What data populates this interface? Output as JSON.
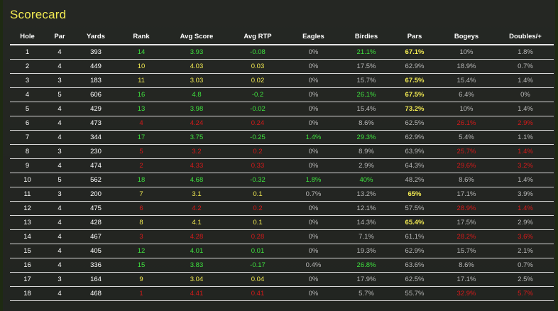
{
  "title": "Scorecard",
  "columns": [
    "Hole",
    "Par",
    "Yards",
    "Rank",
    "Avg Score",
    "Avg RTP",
    "Eagles",
    "Birdies",
    "Pars",
    "Bogeys",
    "Doubles/+"
  ],
  "colors": {
    "green": "#3ee03e",
    "yellow": "#f2ea52",
    "red": "#d41a1a",
    "grey": "#b8b8b8"
  },
  "rows": [
    {
      "hole": "1",
      "par": "4",
      "yards": "393",
      "rank": "14",
      "avg_score": "3.93",
      "avg_rtp": "-0.08",
      "eagles": "0%",
      "birdies": "21.1%",
      "pars": "67.1%",
      "bogeys": "10%",
      "doubles": "1.8%"
    },
    {
      "hole": "2",
      "par": "4",
      "yards": "449",
      "rank": "10",
      "avg_score": "4.03",
      "avg_rtp": "0.03",
      "eagles": "0%",
      "birdies": "17.5%",
      "pars": "62.9%",
      "bogeys": "18.9%",
      "doubles": "0.7%"
    },
    {
      "hole": "3",
      "par": "3",
      "yards": "183",
      "rank": "11",
      "avg_score": "3.03",
      "avg_rtp": "0.02",
      "eagles": "0%",
      "birdies": "15.7%",
      "pars": "67.5%",
      "bogeys": "15.4%",
      "doubles": "1.4%"
    },
    {
      "hole": "4",
      "par": "5",
      "yards": "606",
      "rank": "16",
      "avg_score": "4.8",
      "avg_rtp": "-0.2",
      "eagles": "0%",
      "birdies": "26.1%",
      "pars": "67.5%",
      "bogeys": "6.4%",
      "doubles": "0%"
    },
    {
      "hole": "5",
      "par": "4",
      "yards": "429",
      "rank": "13",
      "avg_score": "3.98",
      "avg_rtp": "-0.02",
      "eagles": "0%",
      "birdies": "15.4%",
      "pars": "73.2%",
      "bogeys": "10%",
      "doubles": "1.4%"
    },
    {
      "hole": "6",
      "par": "4",
      "yards": "473",
      "rank": "4",
      "avg_score": "4.24",
      "avg_rtp": "0.24",
      "eagles": "0%",
      "birdies": "8.6%",
      "pars": "62.5%",
      "bogeys": "26.1%",
      "doubles": "2.9%"
    },
    {
      "hole": "7",
      "par": "4",
      "yards": "344",
      "rank": "17",
      "avg_score": "3.75",
      "avg_rtp": "-0.25",
      "eagles": "1.4%",
      "birdies": "29.3%",
      "pars": "62.9%",
      "bogeys": "5.4%",
      "doubles": "1.1%"
    },
    {
      "hole": "8",
      "par": "3",
      "yards": "230",
      "rank": "5",
      "avg_score": "3.2",
      "avg_rtp": "0.2",
      "eagles": "0%",
      "birdies": "8.9%",
      "pars": "63.9%",
      "bogeys": "25.7%",
      "doubles": "1.4%"
    },
    {
      "hole": "9",
      "par": "4",
      "yards": "474",
      "rank": "2",
      "avg_score": "4.33",
      "avg_rtp": "0.33",
      "eagles": "0%",
      "birdies": "2.9%",
      "pars": "64.3%",
      "bogeys": "29.6%",
      "doubles": "3.2%"
    },
    {
      "hole": "10",
      "par": "5",
      "yards": "562",
      "rank": "18",
      "avg_score": "4.68",
      "avg_rtp": "-0.32",
      "eagles": "1.8%",
      "birdies": "40%",
      "pars": "48.2%",
      "bogeys": "8.6%",
      "doubles": "1.4%"
    },
    {
      "hole": "11",
      "par": "3",
      "yards": "200",
      "rank": "7",
      "avg_score": "3.1",
      "avg_rtp": "0.1",
      "eagles": "0.7%",
      "birdies": "13.2%",
      "pars": "65%",
      "bogeys": "17.1%",
      "doubles": "3.9%"
    },
    {
      "hole": "12",
      "par": "4",
      "yards": "475",
      "rank": "6",
      "avg_score": "4.2",
      "avg_rtp": "0.2",
      "eagles": "0%",
      "birdies": "12.1%",
      "pars": "57.5%",
      "bogeys": "28.9%",
      "doubles": "1.4%"
    },
    {
      "hole": "13",
      "par": "4",
      "yards": "428",
      "rank": "8",
      "avg_score": "4.1",
      "avg_rtp": "0.1",
      "eagles": "0%",
      "birdies": "14.3%",
      "pars": "65.4%",
      "bogeys": "17.5%",
      "doubles": "2.9%"
    },
    {
      "hole": "14",
      "par": "4",
      "yards": "467",
      "rank": "3",
      "avg_score": "4.28",
      "avg_rtp": "0.28",
      "eagles": "0%",
      "birdies": "7.1%",
      "pars": "61.1%",
      "bogeys": "28.2%",
      "doubles": "3.6%"
    },
    {
      "hole": "15",
      "par": "4",
      "yards": "405",
      "rank": "12",
      "avg_score": "4.01",
      "avg_rtp": "0.01",
      "eagles": "0%",
      "birdies": "19.3%",
      "pars": "62.9%",
      "bogeys": "15.7%",
      "doubles": "2.1%"
    },
    {
      "hole": "16",
      "par": "4",
      "yards": "336",
      "rank": "15",
      "avg_score": "3.83",
      "avg_rtp": "-0.17",
      "eagles": "0.4%",
      "birdies": "26.8%",
      "pars": "63.6%",
      "bogeys": "8.6%",
      "doubles": "0.7%"
    },
    {
      "hole": "17",
      "par": "3",
      "yards": "164",
      "rank": "9",
      "avg_score": "3.04",
      "avg_rtp": "0.04",
      "eagles": "0%",
      "birdies": "17.9%",
      "pars": "62.5%",
      "bogeys": "17.1%",
      "doubles": "2.5%"
    },
    {
      "hole": "18",
      "par": "4",
      "yards": "468",
      "rank": "1",
      "avg_score": "4.41",
      "avg_rtp": "0.41",
      "eagles": "0%",
      "birdies": "5.7%",
      "pars": "55.7%",
      "bogeys": "32.9%",
      "doubles": "5.7%"
    }
  ]
}
